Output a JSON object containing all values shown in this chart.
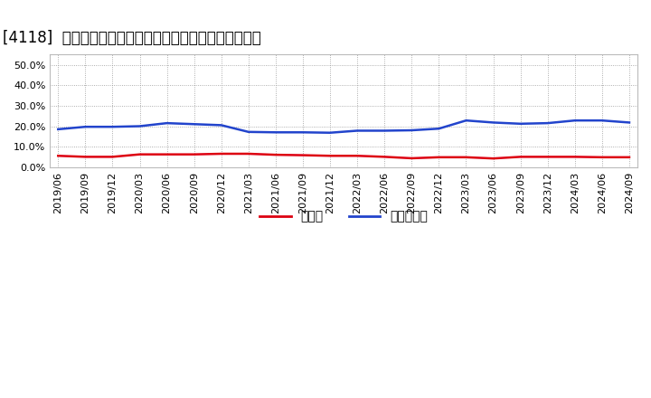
{
  "title": "[4118]  現須金、有利子負債の総資産に対する比率の推移",
  "x_labels": [
    "2019/06",
    "2019/09",
    "2019/12",
    "2020/03",
    "2020/06",
    "2020/09",
    "2020/12",
    "2021/03",
    "2021/06",
    "2021/09",
    "2021/12",
    "2022/03",
    "2022/06",
    "2022/09",
    "2022/12",
    "2023/03",
    "2023/06",
    "2023/09",
    "2023/12",
    "2024/03",
    "2024/06",
    "2024/09"
  ],
  "cash_values": [
    0.055,
    0.05,
    0.05,
    0.062,
    0.062,
    0.062,
    0.065,
    0.065,
    0.06,
    0.058,
    0.055,
    0.055,
    0.05,
    0.043,
    0.048,
    0.048,
    0.042,
    0.05,
    0.05,
    0.05,
    0.048,
    0.048
  ],
  "debt_values": [
    0.185,
    0.197,
    0.197,
    0.2,
    0.215,
    0.21,
    0.205,
    0.172,
    0.17,
    0.17,
    0.168,
    0.178,
    0.178,
    0.18,
    0.188,
    0.228,
    0.218,
    0.212,
    0.215,
    0.228,
    0.228,
    0.218
  ],
  "cash_color": "#dd0011",
  "debt_color": "#2244cc",
  "background_color": "#ffffff",
  "plot_bg_color": "#ffffff",
  "grid_color": "#999999",
  "ylim": [
    0.0,
    0.55
  ],
  "yticks": [
    0.0,
    0.1,
    0.2,
    0.3,
    0.4,
    0.5
  ],
  "legend_cash": "現須金",
  "legend_debt": "有利子負債",
  "title_fontsize": 12,
  "axis_fontsize": 8,
  "legend_fontsize": 10
}
